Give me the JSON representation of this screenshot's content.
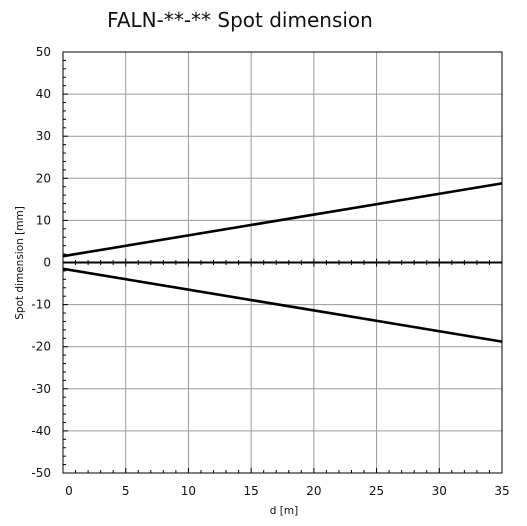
{
  "chart_data": {
    "type": "line",
    "title": "FALN-**-** Spot dimension",
    "xlabel": "d [m]",
    "ylabel": "Spot dimension [mm]",
    "xlim": [
      0,
      35
    ],
    "ylim": [
      -50,
      50
    ],
    "xticks": [
      "0",
      "5",
      "10",
      "15",
      "20",
      "25",
      "30",
      "35"
    ],
    "yticks": [
      "50",
      "40",
      "30",
      "20",
      "10",
      "0",
      "-10",
      "-20",
      "-30",
      "-40",
      "-50"
    ],
    "grid": true,
    "colors": {
      "series": "#000000",
      "grid": "#9a9a9a",
      "axis": "#000000"
    },
    "series": [
      {
        "x": [
          0,
          35
        ],
        "y": [
          1.5,
          18.8
        ]
      },
      {
        "x": [
          0,
          35
        ],
        "y": [
          -1.5,
          -18.8
        ]
      }
    ]
  }
}
